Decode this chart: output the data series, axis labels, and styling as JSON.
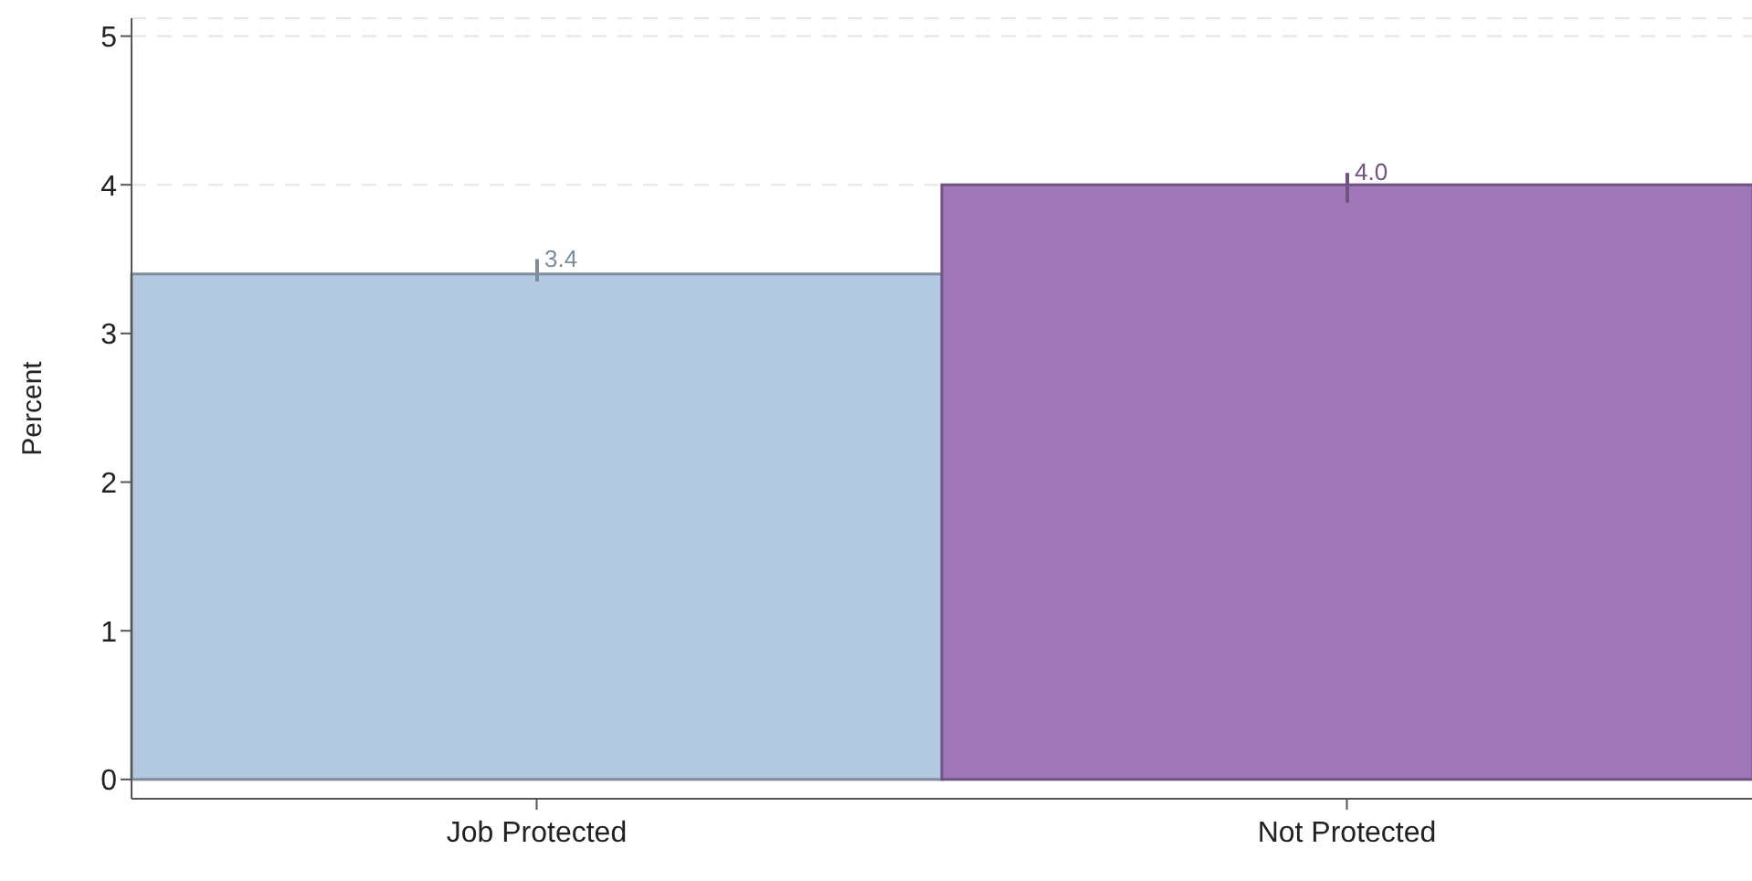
{
  "chart_data": {
    "type": "bar",
    "ylabel": "Percent",
    "categories": [
      "Job Protected",
      "Not Protected"
    ],
    "values": [
      3.4,
      4.0
    ],
    "colors": [
      "#b3c9e1",
      "#a077b8"
    ],
    "errors": [
      [
        3.35,
        3.5
      ],
      [
        3.88,
        4.08
      ]
    ],
    "value_labels": [
      "3.4",
      "4.0"
    ],
    "ylim": [
      -0.13,
      5.12
    ],
    "yticks": [
      0,
      1,
      2,
      3,
      4,
      5
    ],
    "grid": "y"
  }
}
